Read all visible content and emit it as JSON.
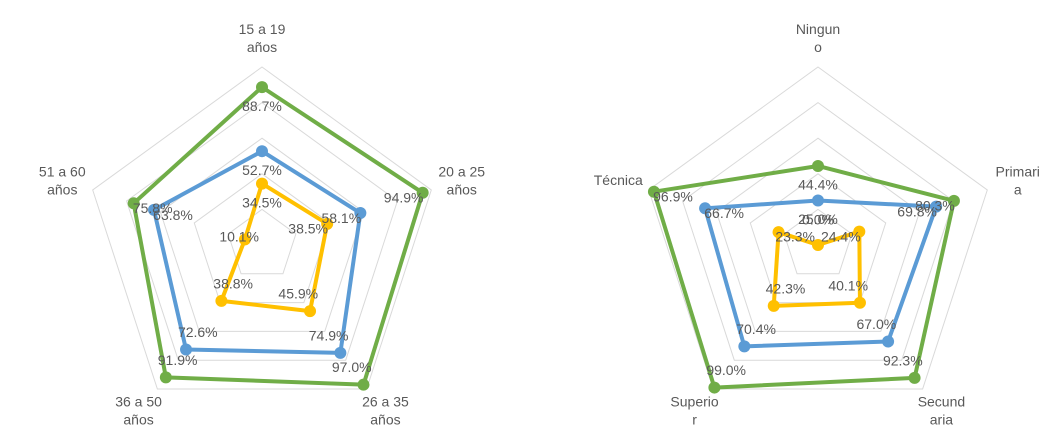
{
  "chart_data": [
    {
      "type": "radar",
      "categories": [
        "15 a 19\naños",
        "20 a 25\naños",
        "26 a 35\naños",
        "36 a 50\naños",
        "51 a 60\naños"
      ],
      "rlim": [
        0,
        100
      ],
      "rticks": [
        0,
        20,
        40,
        60,
        80,
        100
      ],
      "grid": true,
      "series": [
        {
          "color": "#70ad47",
          "values": [
            88.7,
            94.9,
            97.0,
            91.9,
            75.8
          ],
          "value_labels": [
            "88.7%",
            "94.9%",
            "97.0%",
            "91.9%",
            "75.8%"
          ]
        },
        {
          "color": "#5b9bd5",
          "values": [
            52.7,
            58.1,
            74.9,
            72.6,
            63.8
          ],
          "value_labels": [
            "52.7%",
            "58.1%",
            "74.9%",
            "72.6%",
            "63.8%"
          ]
        },
        {
          "color": "#ffc000",
          "values": [
            34.5,
            38.5,
            45.9,
            38.8,
            10.1
          ],
          "value_labels": [
            "34.5%",
            "38.5%",
            "45.9%",
            "38.8%",
            "10.1%"
          ]
        }
      ]
    },
    {
      "type": "radar",
      "categories": [
        "Ningun\no",
        "Primari\na",
        "Secund\naria",
        "Superio\nr",
        "Técnica"
      ],
      "rlim": [
        0,
        100
      ],
      "rticks": [
        0,
        20,
        40,
        60,
        80,
        100
      ],
      "grid": true,
      "series": [
        {
          "color": "#70ad47",
          "values": [
            44.4,
            80.3,
            92.3,
            99.0,
            96.9
          ],
          "value_labels": [
            "44.4%",
            "80.3%",
            "92.3%",
            "99.0%",
            "96.9%"
          ]
        },
        {
          "color": "#5b9bd5",
          "values": [
            25.0,
            69.8,
            67.0,
            70.4,
            66.7
          ],
          "value_labels": [
            "25.0%",
            "69.8%",
            "67.0%",
            "70.4%",
            "66.7%"
          ]
        },
        {
          "color": "#ffc000",
          "values": [
            0.0,
            24.4,
            40.1,
            42.3,
            23.3
          ],
          "value_labels": [
            "0.0%",
            "24.4%",
            "40.1%",
            "42.3%",
            "23.3%"
          ]
        }
      ]
    }
  ]
}
